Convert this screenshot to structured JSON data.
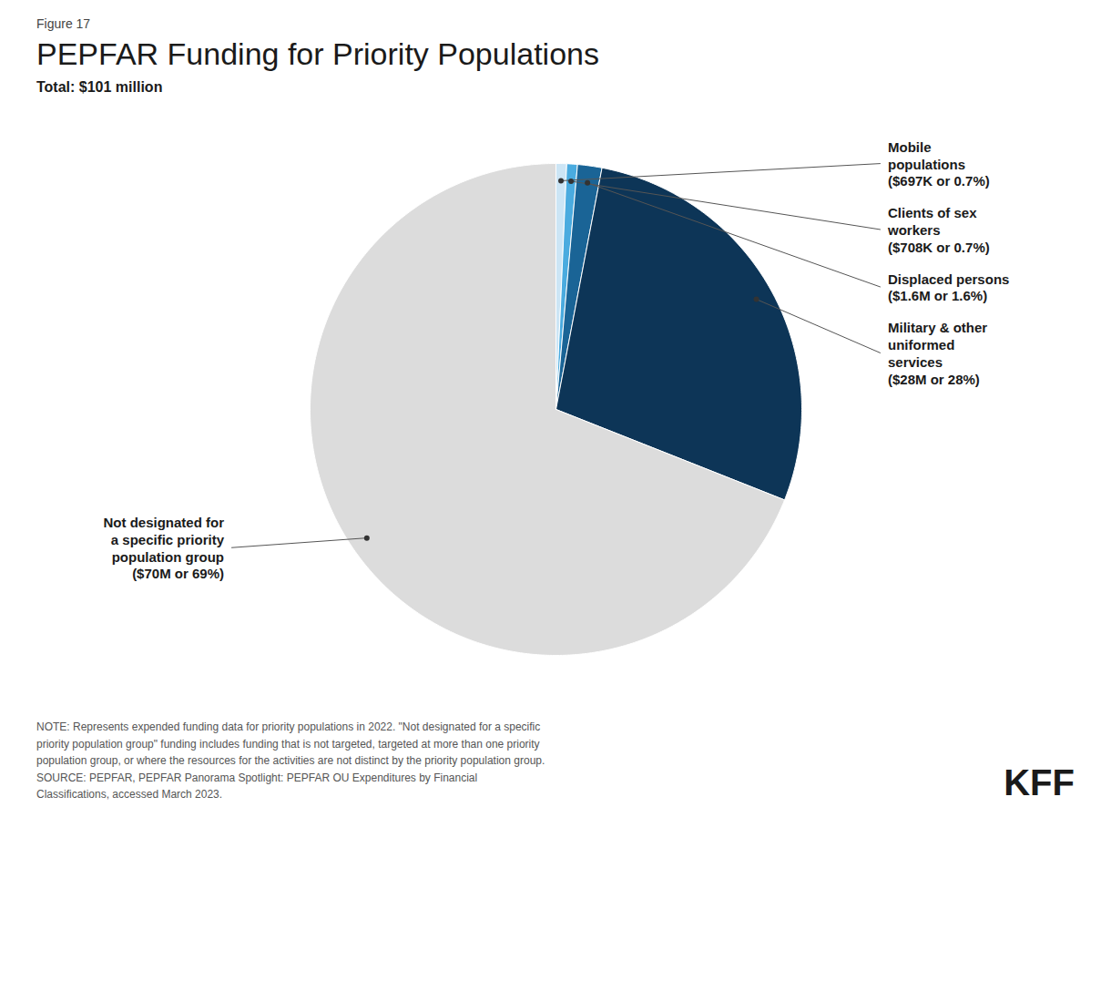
{
  "chart_data": {
    "type": "pie",
    "figure_label": "Figure 17",
    "title": "PEPFAR Funding for Priority Populations",
    "subtitle": "Total: $101 million",
    "categories": [
      "Mobile\npopulations\n($697K or 0.7%)",
      "Clients of sex\nworkers\n($708K or 0.7%)",
      "Displaced persons\n($1.6M or 1.6%)",
      "Military & other\nuniformed\nservices\n($28M or 28%)",
      "Not designated for\na specific priority\npopulation group\n($70M or 69%)"
    ],
    "values": [
      0.7,
      0.7,
      1.6,
      28.0,
      69.0
    ],
    "colors": [
      "#cce5f5",
      "#4aabdf",
      "#1a6496",
      "#0d3557",
      "#dcdcdc"
    ],
    "note": "NOTE: Represents expended funding data for priority populations in 2022. \"Not designated for a specific\npriority population group\" funding includes funding that is not targeted, targeted at more than one priority\npopulation group, or where the resources for the activities are not distinct by the priority population group.\nSOURCE: PEPFAR, PEPFAR Panorama Spotlight: PEPFAR OU Expenditures by Financial\nClassifications, accessed March 2023.",
    "logo": "KFF"
  }
}
